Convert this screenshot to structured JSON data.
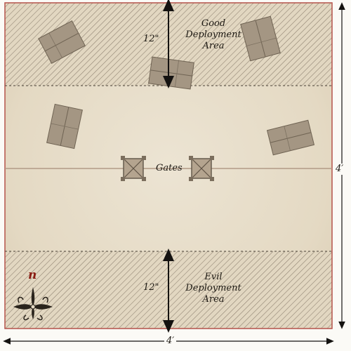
{
  "zones": {
    "good": {
      "line1": "Good",
      "line2": "Deployment",
      "line3": "Area"
    },
    "evil": {
      "line1": "Evil",
      "line2": "Deployment",
      "line3": "Area"
    }
  },
  "measurements": {
    "top_depth": "12\"",
    "bottom_depth": "12\"",
    "right_edge": "4′",
    "bottom_edge": "4′"
  },
  "gates": {
    "label": "Gates"
  },
  "compass": {
    "north": "n"
  },
  "colors": {
    "parchment": "#e6dcc7",
    "border": "#b5534a",
    "hatch": "#8c7f6e",
    "dashed_line": "#4a4237",
    "gate_line": "#b29a86",
    "arrow": "#141210",
    "building": "#a49683",
    "north_red": "#8a1d14"
  },
  "icons": [
    "building-icon",
    "gate-tower-icon",
    "compass-rose-icon",
    "measurement-arrow-icon"
  ]
}
